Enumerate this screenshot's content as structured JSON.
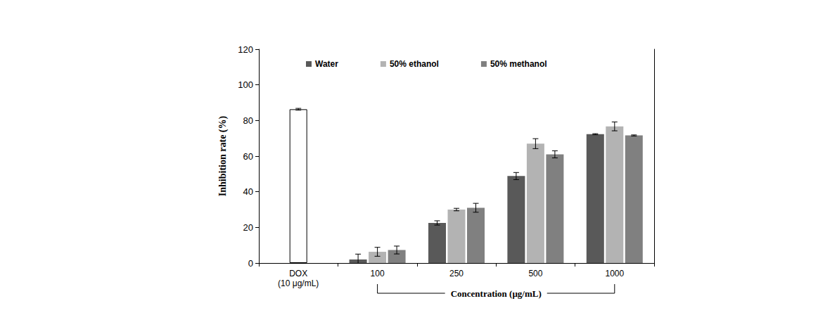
{
  "chart_data": {
    "type": "bar",
    "categories": [
      "DOX\n(10 μg/mL)",
      "100",
      "250",
      "500",
      "1000"
    ],
    "x_label": "Concentration (μg/mL)",
    "y_label": "Inhibition rate (%)",
    "series": [
      {
        "name": "Water",
        "color": "#595959",
        "values": [
          null,
          2,
          22.5,
          48.8,
          72.3
        ],
        "errors": [
          null,
          3.0,
          1.2,
          2.0,
          0.3
        ]
      },
      {
        "name": "50% ethanol",
        "color": "#b3b3b3",
        "values": [
          null,
          6.3,
          30,
          67,
          76.7
        ],
        "errors": [
          null,
          2.5,
          0.7,
          2.8,
          2.5
        ]
      },
      {
        "name": "50% methanol",
        "color": "#808080",
        "values": [
          null,
          7.3,
          31,
          61,
          71.6
        ],
        "errors": [
          null,
          2.2,
          2.5,
          2.0,
          0.3
        ]
      }
    ],
    "control": {
      "color": "#ffffff",
      "values": [
        86.3,
        null,
        null,
        null,
        null
      ],
      "errors": [
        0.5,
        null,
        null,
        null,
        null
      ]
    },
    "ylim": [
      0,
      120
    ],
    "yticks": [
      0,
      20,
      40,
      60,
      80,
      100,
      120
    ],
    "grid": false,
    "legend": "top"
  }
}
